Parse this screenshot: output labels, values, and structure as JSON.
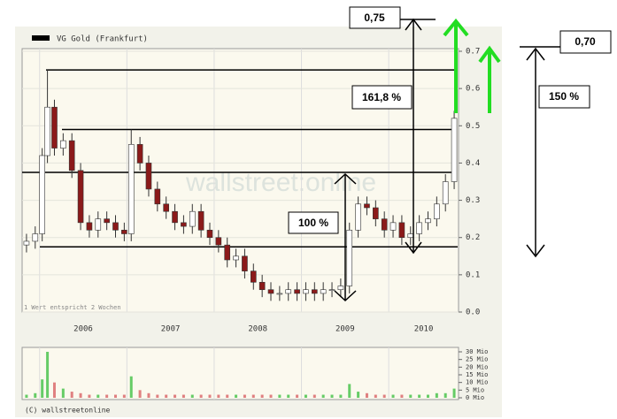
{
  "chart_data": {
    "type": "candlestick",
    "legend": "VG Gold (Frankfurt)",
    "note": "1 Wert entspricht 2 Wochen",
    "copyright": "(C) wallstreetonline",
    "watermark": "wallstreet:online",
    "annotations": [
      "0,75",
      "0,70",
      "161,8 %",
      "100 %",
      "150 %"
    ],
    "levels": [
      0.65,
      0.49,
      0.375,
      0.175
    ],
    "x": [
      2005.85,
      2005.95,
      2006.03,
      2006.09,
      2006.17,
      2006.27,
      2006.37,
      2006.47,
      2006.57,
      2006.67,
      2006.77,
      2006.87,
      2006.97,
      2007.05,
      2007.15,
      2007.25,
      2007.35,
      2007.45,
      2007.55,
      2007.65,
      2007.75,
      2007.85,
      2007.95,
      2008.05,
      2008.15,
      2008.25,
      2008.35,
      2008.45,
      2008.55,
      2008.65,
      2008.75,
      2008.85,
      2008.95,
      2009.05,
      2009.15,
      2009.25,
      2009.35,
      2009.45,
      2009.55,
      2009.65,
      2009.75,
      2009.85,
      2009.95,
      2010.05,
      2010.15,
      2010.25,
      2010.35,
      2010.45,
      2010.55,
      2010.65,
      2010.75
    ],
    "open": [
      0.18,
      0.19,
      0.21,
      0.42,
      0.55,
      0.44,
      0.46,
      0.38,
      0.24,
      0.22,
      0.25,
      0.24,
      0.22,
      0.21,
      0.45,
      0.4,
      0.33,
      0.29,
      0.27,
      0.24,
      0.23,
      0.27,
      0.22,
      0.2,
      0.18,
      0.14,
      0.15,
      0.11,
      0.08,
      0.06,
      0.05,
      0.05,
      0.06,
      0.05,
      0.06,
      0.05,
      0.06,
      0.06,
      0.07,
      0.22,
      0.29,
      0.28,
      0.25,
      0.22,
      0.24,
      0.2,
      0.21,
      0.24,
      0.25,
      0.29,
      0.35
    ],
    "high": [
      0.21,
      0.23,
      0.44,
      0.65,
      0.57,
      0.48,
      0.48,
      0.4,
      0.26,
      0.27,
      0.27,
      0.26,
      0.24,
      0.49,
      0.47,
      0.42,
      0.35,
      0.31,
      0.29,
      0.26,
      0.29,
      0.29,
      0.24,
      0.22,
      0.2,
      0.17,
      0.17,
      0.13,
      0.1,
      0.08,
      0.07,
      0.08,
      0.08,
      0.08,
      0.08,
      0.08,
      0.08,
      0.09,
      0.24,
      0.31,
      0.31,
      0.3,
      0.27,
      0.26,
      0.26,
      0.23,
      0.26,
      0.27,
      0.31,
      0.37,
      0.54
    ],
    "low": [
      0.16,
      0.17,
      0.19,
      0.4,
      0.42,
      0.42,
      0.36,
      0.22,
      0.2,
      0.2,
      0.22,
      0.2,
      0.19,
      0.19,
      0.38,
      0.31,
      0.27,
      0.25,
      0.22,
      0.21,
      0.21,
      0.2,
      0.18,
      0.16,
      0.12,
      0.12,
      0.09,
      0.06,
      0.04,
      0.03,
      0.03,
      0.03,
      0.03,
      0.03,
      0.03,
      0.03,
      0.04,
      0.04,
      0.05,
      0.2,
      0.26,
      0.23,
      0.2,
      0.2,
      0.18,
      0.18,
      0.19,
      0.22,
      0.23,
      0.27,
      0.33
    ],
    "close": [
      0.19,
      0.21,
      0.42,
      0.55,
      0.44,
      0.46,
      0.38,
      0.24,
      0.22,
      0.25,
      0.24,
      0.22,
      0.21,
      0.45,
      0.4,
      0.33,
      0.29,
      0.27,
      0.24,
      0.23,
      0.27,
      0.22,
      0.2,
      0.18,
      0.14,
      0.15,
      0.11,
      0.08,
      0.06,
      0.05,
      0.05,
      0.06,
      0.05,
      0.06,
      0.05,
      0.06,
      0.06,
      0.07,
      0.22,
      0.29,
      0.28,
      0.25,
      0.22,
      0.24,
      0.2,
      0.21,
      0.24,
      0.25,
      0.29,
      0.35,
      0.52
    ],
    "up_color": "#ffffff",
    "down_color": "#8b1a1a",
    "xlim": [
      2005.8,
      2010.8
    ],
    "xticks": [
      {
        "value": 2006.5,
        "label": "2006"
      },
      {
        "value": 2007.5,
        "label": "2007"
      },
      {
        "value": 2008.5,
        "label": "2008"
      },
      {
        "value": 2009.5,
        "label": "2009"
      },
      {
        "value": 2010.4,
        "label": "2010"
      }
    ],
    "xgrid": [
      2006,
      2007,
      2008,
      2009,
      2010
    ],
    "ylim": [
      0,
      0.7
    ],
    "yticks": [
      {
        "value": 0,
        "label": "0.0"
      },
      0.1,
      0.2,
      0.3,
      0.4,
      0.5,
      0.6,
      0.7
    ],
    "volume": {
      "values": [
        2,
        3,
        12,
        30,
        10,
        6,
        4,
        3,
        2,
        2,
        2,
        2,
        2,
        14,
        5,
        3,
        2,
        2,
        2,
        2,
        2,
        2,
        2,
        2,
        2,
        2,
        2,
        2,
        2,
        2,
        2,
        2,
        2,
        2,
        2,
        2,
        2,
        2,
        9,
        4,
        3,
        2,
        2,
        2,
        2,
        2,
        2,
        2,
        3,
        3,
        6
      ],
      "up_color": "#66cc66",
      "down_color": "#e08080",
      "ylim": [
        0,
        30
      ],
      "yticks": [
        {
          "value": 0,
          "label": "0 Mio"
        },
        {
          "value": 5,
          "label": "5 Mio"
        },
        {
          "value": 10,
          "label": "10 Mio"
        },
        {
          "value": 15,
          "label": "15 Mio"
        },
        {
          "value": 20,
          "label": "20 Mio"
        },
        {
          "value": 25,
          "label": "25 Mio"
        },
        {
          "value": 30,
          "label": "30 Mio"
        }
      ]
    }
  }
}
